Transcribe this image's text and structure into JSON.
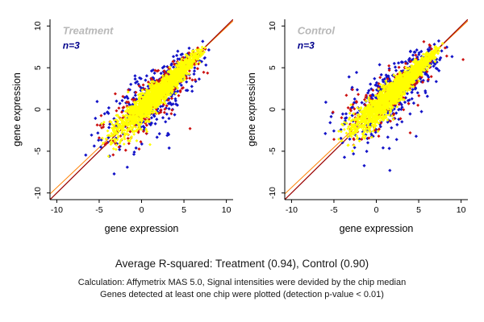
{
  "figure": {
    "background": "#ffffff",
    "axis_color": "#000000",
    "text_color": "#000000"
  },
  "chart_data": [
    {
      "type": "scatter",
      "name": "treatment",
      "title": "Treatment",
      "title_color": "#b8b8b8",
      "annotation": "n=3",
      "annotation_color": "#00008b",
      "xlabel": "gene expression",
      "ylabel": "gene expression",
      "xlim": [
        -10.8,
        10.8
      ],
      "ylim": [
        -10.8,
        10.8
      ],
      "ticks": [
        -10,
        -5,
        0,
        5,
        10
      ],
      "grid": false,
      "legend": "none",
      "ref_lines": [
        {
          "slope": 0.96,
          "intercept": 0.25,
          "color": "#ff8000",
          "width": 1
        },
        {
          "slope": 1,
          "intercept": 0,
          "color": "#990000",
          "width": 1.2
        }
      ],
      "scatter": {
        "seed": 1337,
        "t_range": [
          -3.8,
          7.6
        ],
        "series": [
          {
            "name": "blue-genes",
            "color": "#1414c8",
            "count": 430,
            "noise": 1.15,
            "size": 2.1
          },
          {
            "name": "red-genes",
            "color": "#cc1111",
            "count": 330,
            "noise": 0.95,
            "size": 2.0
          },
          {
            "name": "yellow-genes",
            "color": "#ffff00",
            "count": 1700,
            "noise": 0.5,
            "size": 1.9
          }
        ],
        "outliers": [
          {
            "x": -2.6,
            "y": -4.8,
            "series": 0
          },
          {
            "x": 3.2,
            "y": -3.0,
            "series": 0
          },
          {
            "x": -4.5,
            "y": -1.8,
            "series": 1
          },
          {
            "x": -3.9,
            "y": -5.6,
            "series": 2
          },
          {
            "x": 1.0,
            "y": -4.2,
            "series": 2
          }
        ]
      }
    },
    {
      "type": "scatter",
      "name": "control",
      "title": "Control",
      "title_color": "#b8b8b8",
      "annotation": "n=3",
      "annotation_color": "#00008b",
      "xlabel": "gene expression",
      "ylabel": "gene expression",
      "xlim": [
        -10.8,
        10.8
      ],
      "ylim": [
        -10.8,
        10.8
      ],
      "ticks": [
        -10,
        -5,
        0,
        5,
        10
      ],
      "grid": false,
      "legend": "none",
      "ref_lines": [
        {
          "slope": 0.96,
          "intercept": 0.25,
          "color": "#ff8000",
          "width": 1
        },
        {
          "slope": 1,
          "intercept": 0,
          "color": "#990000",
          "width": 1.2
        }
      ],
      "scatter": {
        "seed": 777,
        "t_range": [
          -3.4,
          7.8
        ],
        "series": [
          {
            "name": "blue-genes",
            "color": "#1414c8",
            "count": 480,
            "noise": 1.2,
            "size": 2.1
          },
          {
            "name": "red-genes",
            "color": "#cc1111",
            "count": 300,
            "noise": 1.0,
            "size": 2.0
          },
          {
            "name": "yellow-genes",
            "color": "#ffff00",
            "count": 1800,
            "noise": 0.5,
            "size": 1.9
          }
        ],
        "outliers": [
          {
            "x": 1.6,
            "y": -7.3,
            "series": 0
          },
          {
            "x": 0.8,
            "y": -4.6,
            "series": 0
          },
          {
            "x": 2.4,
            "y": -3.6,
            "series": 0
          },
          {
            "x": 4.0,
            "y": -2.8,
            "series": 1
          },
          {
            "x": -2.2,
            "y": -3.4,
            "series": 2
          },
          {
            "x": -3.0,
            "y": -3.0,
            "series": 2
          }
        ]
      }
    }
  ],
  "footer": {
    "summary": "Average R-squared: Treatment (0.94), Control (0.90)",
    "note1": "Calculation: Affymetrix MAS 5.0, Signal intensities were devided by the chip median",
    "note2": "Genes detected at least one chip were plotted (detection p-value < 0.01)"
  }
}
